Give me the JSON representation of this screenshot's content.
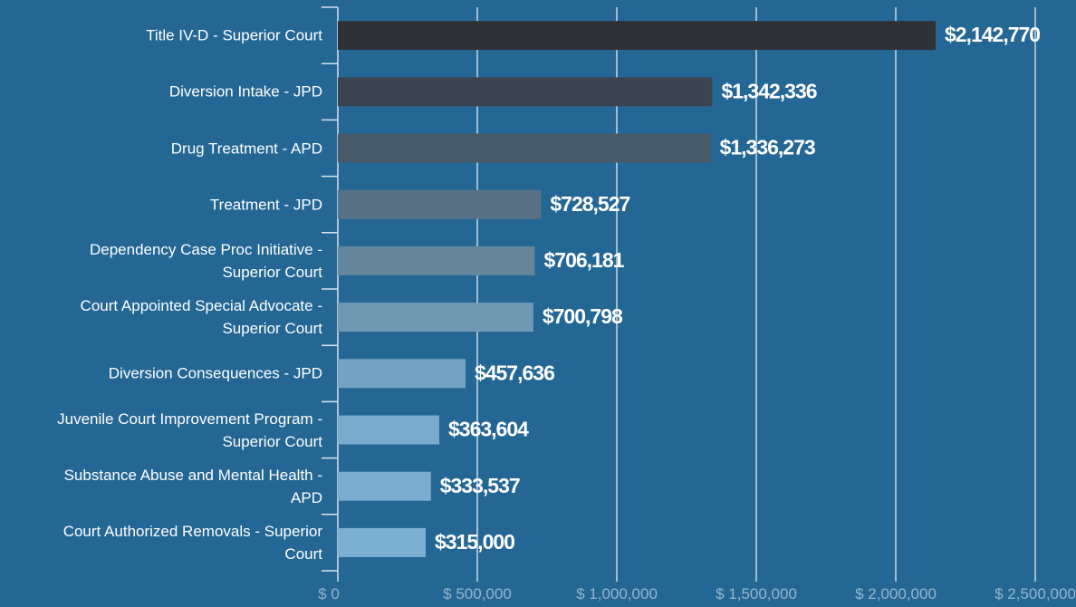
{
  "chart_data": {
    "type": "barh",
    "categories": [
      "Title IV-D - Superior Court",
      "Diversion Intake - JPD",
      "Drug Treatment - APD",
      "Treatment - JPD",
      "Dependency Case Proc Initiative - Superior Court",
      "Court Appointed Special Advocate - Superior Court",
      "Diversion Consequences - JPD",
      "Juvenile Court Improvement Program - Superior Court",
      "Substance Abuse and Mental Health - APD",
      "Court Authorized Removals - Superior Court"
    ],
    "values": [
      2142770,
      1342336,
      1336273,
      728527,
      706181,
      700798,
      457636,
      363604,
      333537,
      315000
    ],
    "value_labels": [
      "$2,142,770",
      "$1,342,336",
      "$1,336,273",
      "$728,527",
      "$706,181",
      "$700,798",
      "$457,636",
      "$363,604",
      "$333,537",
      "$315,000"
    ],
    "colors": [
      "#2e3237",
      "#3a4551",
      "#475a69",
      "#587184",
      "#66869b",
      "#7198b3",
      "#75a4c3",
      "#79abcc",
      "#7badd0",
      "#7bb0d3"
    ],
    "xlim": [
      0,
      2500000
    ],
    "xticks": [
      {
        "value": 0,
        "label": "$ 0"
      },
      {
        "value": 500000,
        "label": "$ 500,000"
      },
      {
        "value": 1000000,
        "label": "$ 1,000,000"
      },
      {
        "value": 1500000,
        "label": "$ 1,500,000"
      },
      {
        "value": 2000000,
        "label": "$ 2,000,000"
      },
      {
        "value": 2500000,
        "label": "$ 2,500,000"
      }
    ],
    "grid": true
  }
}
